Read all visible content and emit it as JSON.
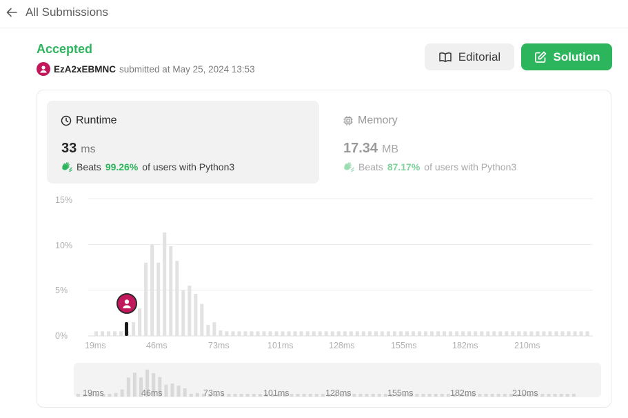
{
  "header": {
    "back_label": "All Submissions"
  },
  "submission": {
    "status": "Accepted",
    "username": "EzA2xEBMNC",
    "submitted_text": "submitted at May 25, 2024 13:53"
  },
  "actions": {
    "editorial_label": "Editorial",
    "solution_label": "Solution"
  },
  "runtime": {
    "title": "Runtime",
    "value": "33",
    "unit": "ms",
    "beats_prefix": "Beats",
    "beats_pct": "99.26%",
    "beats_suffix": "of users with Python3"
  },
  "memory": {
    "title": "Memory",
    "value": "17.34",
    "unit": "MB",
    "beats_prefix": "Beats",
    "beats_pct": "87.17%",
    "beats_suffix": "of users with Python3"
  },
  "colors": {
    "accent_green": "#2db55d",
    "bar": "#e2e2e2",
    "mini_bar": "#d9d9d9",
    "avatar": "#c2185b"
  },
  "chart_data": {
    "type": "bar",
    "ylabel_ticks": [
      "15%",
      "10%",
      "5%",
      "0%"
    ],
    "ylim": [
      0,
      15
    ],
    "x_tick_labels": [
      "19ms",
      "46ms",
      "73ms",
      "101ms",
      "128ms",
      "155ms",
      "182ms",
      "210ms"
    ],
    "grid": true,
    "highlight": {
      "x": "33ms",
      "label": "your submission"
    },
    "values": [
      0.5,
      0.5,
      0.5,
      0.5,
      0.5,
      0.5,
      1.5,
      3.0,
      8.0,
      10.0,
      8.0,
      11.3,
      9.8,
      8.2,
      5.0,
      5.5,
      4.6,
      3.5,
      1.2,
      1.5,
      0.6,
      0.5,
      0.5,
      0.5,
      0.5,
      0.5,
      0.5,
      0.5,
      0.5,
      0.5,
      0.5,
      0.5,
      0.5,
      0.5,
      0.5,
      0.5,
      0.5,
      0.5,
      0.5,
      0.5,
      0.5,
      0.5,
      0.5,
      0.5,
      0.5,
      0.5,
      0.5,
      0.5,
      0.5,
      0.5,
      0.5,
      0.5,
      0.5,
      0.5,
      0.5,
      0.5,
      0.5,
      0.5,
      0.5,
      0.5,
      0.5,
      0.5,
      0.5,
      0.5,
      0.5,
      0.5,
      0.5,
      0.5,
      0.5,
      0.5,
      0.5,
      0.5,
      0.5,
      0.5,
      0.5,
      0.5,
      0.5,
      0.5,
      0.5,
      0.5
    ]
  }
}
